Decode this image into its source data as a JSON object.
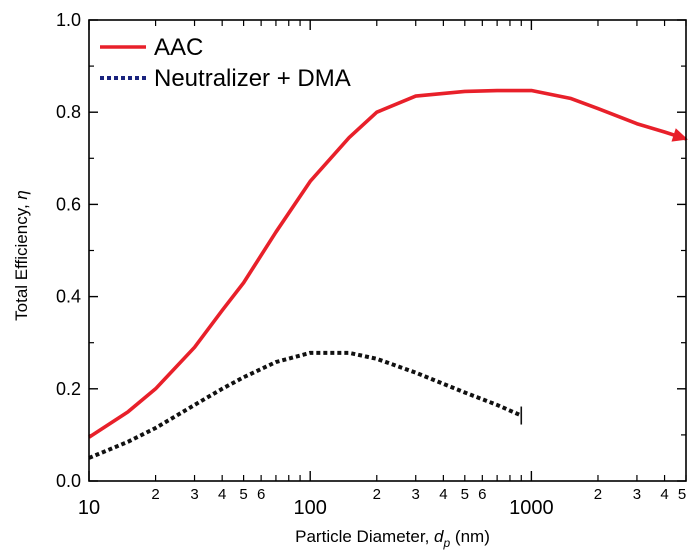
{
  "chart_data": {
    "type": "line",
    "xscale": "log",
    "xlim": [
      10,
      5000
    ],
    "ylim": [
      0,
      1.0
    ],
    "xlabel": "Particle Diameter, ",
    "xlabel_var": "d",
    "xlabel_sub": "p",
    "xlabel_unit": " (nm)",
    "ylabel": "Total Efficiency, ",
    "ylabel_var": "η",
    "y_ticks": [
      {
        "value": 0.0,
        "label": "0.0"
      },
      {
        "value": 0.2,
        "label": "0.2"
      },
      {
        "value": 0.4,
        "label": "0.4"
      },
      {
        "value": 0.6,
        "label": "0.6"
      },
      {
        "value": 0.8,
        "label": "0.8"
      },
      {
        "value": 1.0,
        "label": "1.0"
      }
    ],
    "x_major_ticks": [
      {
        "value": 10,
        "label": "10"
      },
      {
        "value": 100,
        "label": "100"
      },
      {
        "value": 1000,
        "label": "1000"
      }
    ],
    "x_minor_ticks": [
      {
        "value": 20,
        "label": "2"
      },
      {
        "value": 30,
        "label": "3"
      },
      {
        "value": 40,
        "label": "4"
      },
      {
        "value": 50,
        "label": "5"
      },
      {
        "value": 60,
        "label": "6"
      },
      {
        "value": 70,
        "label": ""
      },
      {
        "value": 80,
        "label": ""
      },
      {
        "value": 90,
        "label": ""
      },
      {
        "value": 200,
        "label": "2"
      },
      {
        "value": 300,
        "label": "3"
      },
      {
        "value": 400,
        "label": "4"
      },
      {
        "value": 500,
        "label": "5"
      },
      {
        "value": 600,
        "label": "6"
      },
      {
        "value": 700,
        "label": ""
      },
      {
        "value": 800,
        "label": ""
      },
      {
        "value": 900,
        "label": ""
      },
      {
        "value": 2000,
        "label": "2"
      },
      {
        "value": 3000,
        "label": "3"
      },
      {
        "value": 4000,
        "label": "4"
      },
      {
        "value": 5000,
        "label": "5"
      }
    ],
    "legend": {
      "placement": "top-left"
    },
    "series": [
      {
        "name": "AAC",
        "color": "#e8202a",
        "style": "solid",
        "end_arrow": true,
        "x": [
          10,
          15,
          20,
          30,
          40,
          50,
          70,
          100,
          150,
          200,
          300,
          500,
          700,
          1000,
          1500,
          2000,
          3000,
          4000,
          5000
        ],
        "y": [
          0.095,
          0.15,
          0.2,
          0.29,
          0.37,
          0.43,
          0.54,
          0.65,
          0.745,
          0.8,
          0.835,
          0.845,
          0.847,
          0.847,
          0.83,
          0.808,
          0.775,
          0.757,
          0.742
        ]
      },
      {
        "name": "Neutralizer + DMA",
        "color": "#1a237e",
        "style": "dotted",
        "x": [
          10,
          15,
          20,
          30,
          40,
          50,
          70,
          100,
          150,
          200,
          300,
          500,
          700,
          900
        ],
        "y": [
          0.05,
          0.085,
          0.115,
          0.165,
          0.2,
          0.225,
          0.258,
          0.278,
          0.278,
          0.265,
          0.235,
          0.192,
          0.165,
          0.142
        ]
      }
    ]
  }
}
